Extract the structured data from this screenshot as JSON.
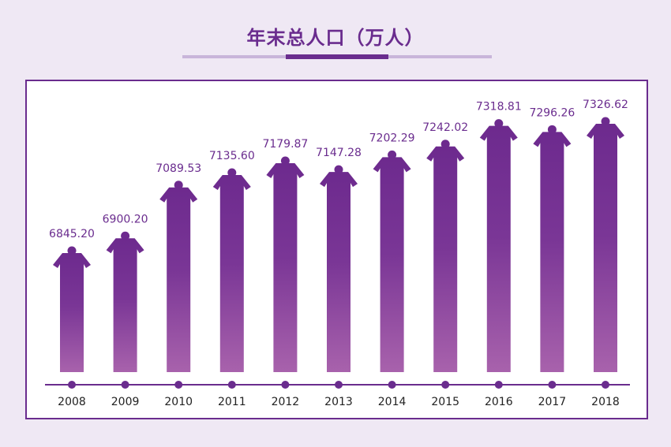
{
  "title": "年末总人口（万人）",
  "colors": {
    "accent": "#6a2c8e",
    "bar_top": "#6d2a8e",
    "bar_bottom": "#a862ac",
    "panel_border": "#6a2c8e",
    "background": "#efe8f4"
  },
  "chart_data": {
    "type": "bar",
    "title": "年末总人口（万人）",
    "categories": [
      "2008",
      "2009",
      "2010",
      "2011",
      "2012",
      "2013",
      "2014",
      "2015",
      "2016",
      "2017",
      "2018"
    ],
    "values": [
      6845.2,
      6900.2,
      7089.53,
      7135.6,
      7179.87,
      7147.28,
      7202.29,
      7242.02,
      7318.81,
      7296.26,
      7326.62
    ],
    "value_labels": [
      "6845.20",
      "6900.20",
      "7089.53",
      "7135.60",
      "7179.87",
      "7147.28",
      "7202.29",
      "7242.02",
      "7318.81",
      "7296.26",
      "7326.62"
    ],
    "xlabel": "",
    "ylabel": "",
    "grid": false,
    "legend": "none"
  }
}
